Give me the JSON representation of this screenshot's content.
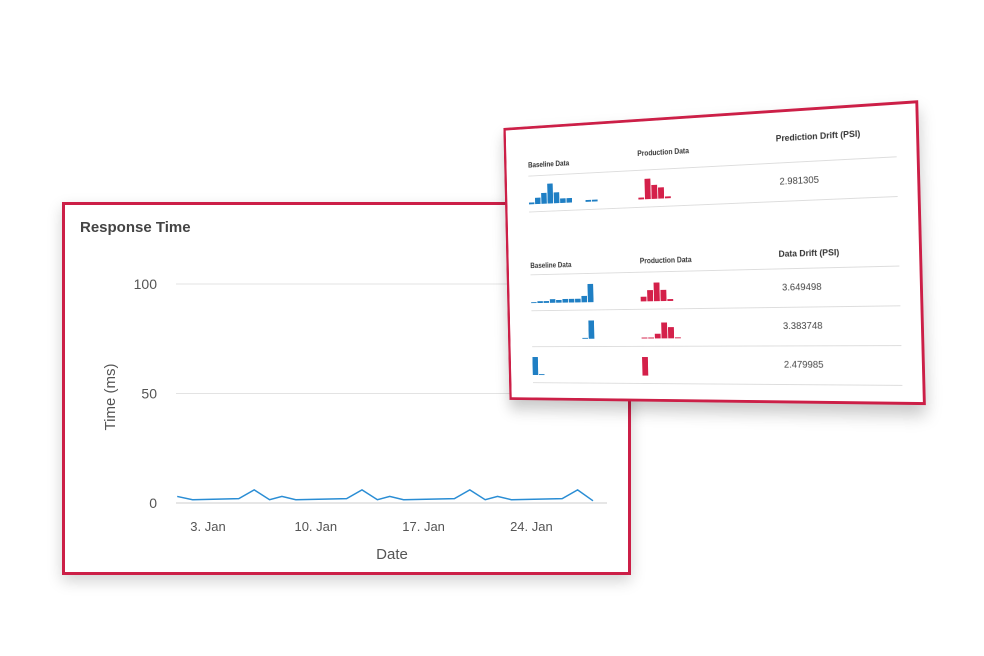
{
  "response_chart": {
    "title": "Response Time",
    "chart_data": {
      "type": "line",
      "title": "Response Time",
      "xlabel": "Date",
      "ylabel": "Time (ms)",
      "ylim": [
        0,
        110
      ],
      "yticks": [
        0,
        50,
        100
      ],
      "xticks": [
        "3. Jan",
        "10. Jan",
        "17. Jan",
        "24. Jan"
      ],
      "xtick_days": [
        3,
        10,
        17,
        24
      ],
      "grid": true,
      "color": "#2a8dd4",
      "x": [
        1,
        2,
        5,
        6,
        7,
        7.8,
        8.7,
        12,
        13,
        14,
        14.8,
        15.7,
        19,
        20,
        21,
        21.8,
        22.7,
        26,
        27,
        28
      ],
      "y": [
        3,
        1.5,
        2,
        6,
        1.5,
        3,
        1.5,
        2,
        6,
        1.5,
        3,
        1.5,
        2,
        6,
        1.5,
        3,
        1.5,
        2,
        6,
        1
      ]
    }
  },
  "drift_panel": {
    "baseline_color": "#1f7fc4",
    "production_color": "#d4204a",
    "prediction": {
      "headers": [
        "Baseline Data",
        "Production Data",
        "Prediction Drift (PSI)"
      ],
      "rows": [
        {
          "baseline": [
            1,
            3,
            5,
            9,
            5,
            2,
            2,
            0,
            0,
            1,
            1
          ],
          "production": [
            1,
            9,
            6,
            5,
            1
          ],
          "value": "2.981305"
        }
      ]
    },
    "data": {
      "headers": [
        "Baseline Data",
        "Production Data",
        "Data Drift (PSI)"
      ],
      "rows": [
        {
          "baseline": [
            0.3,
            1,
            1,
            1.5,
            1.2,
            1.5,
            1.5,
            1.5,
            3,
            8
          ],
          "production": [
            2,
            5,
            8,
            5,
            1
          ],
          "value": "3.649498"
        },
        {
          "baseline": [
            0,
            0,
            0,
            0,
            0,
            0,
            0,
            0,
            0.3,
            8
          ],
          "production": [
            0.3,
            0.3,
            2,
            7,
            5,
            0.5
          ],
          "value": "3.383748"
        },
        {
          "baseline": [
            8,
            0.5
          ],
          "production": [
            8
          ],
          "value": "2.479985"
        }
      ]
    }
  }
}
